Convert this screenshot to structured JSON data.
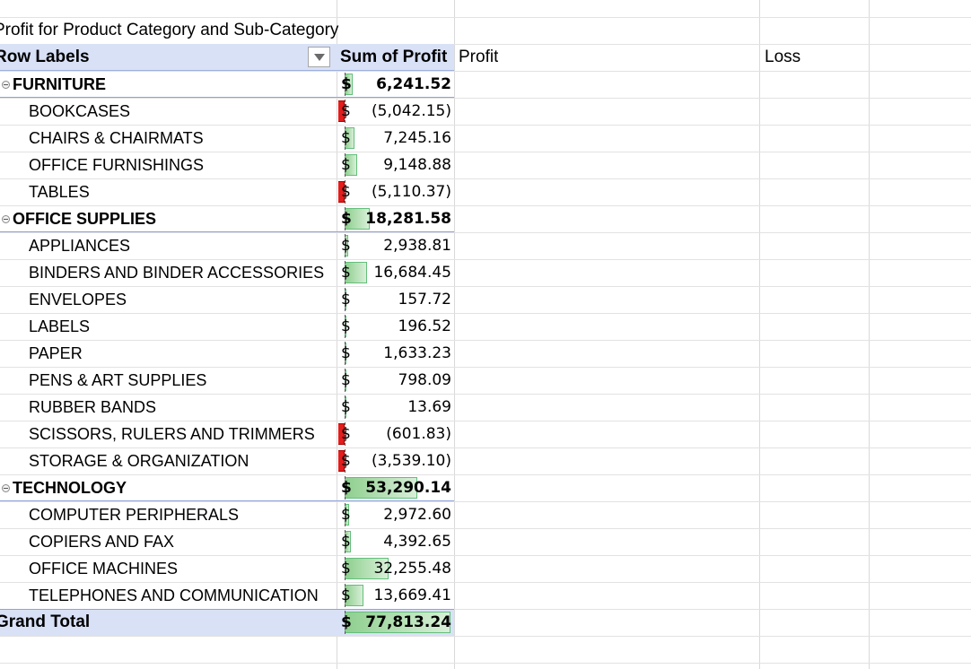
{
  "pivot": {
    "title": "Profit for Product Category and Sub-Category",
    "row_labels_header": "Row Labels",
    "value_header": "Sum of Profit",
    "extra_headers": {
      "profit": "Profit",
      "loss": "Loss"
    },
    "grand_total": {
      "label": "Grand Total",
      "currency": "$",
      "amount": "77,813.24",
      "value": 77813.24
    },
    "categories": [
      {
        "label": "FURNITURE",
        "currency": "$",
        "amount": "6,241.52",
        "value": 6241.52,
        "items": [
          {
            "label": "BOOKCASES",
            "currency": "$",
            "amount": "(5,042.15)",
            "value": -5042.15
          },
          {
            "label": "CHAIRS & CHAIRMATS",
            "currency": "$",
            "amount": "7,245.16",
            "value": 7245.16
          },
          {
            "label": "OFFICE FURNISHINGS",
            "currency": "$",
            "amount": "9,148.88",
            "value": 9148.88
          },
          {
            "label": "TABLES",
            "currency": "$",
            "amount": "(5,110.37)",
            "value": -5110.37
          }
        ]
      },
      {
        "label": "OFFICE SUPPLIES",
        "currency": "$",
        "amount": "18,281.58",
        "value": 18281.58,
        "items": [
          {
            "label": "APPLIANCES",
            "currency": "$",
            "amount": "2,938.81",
            "value": 2938.81
          },
          {
            "label": "BINDERS AND BINDER ACCESSORIES",
            "currency": "$",
            "amount": "16,684.45",
            "value": 16684.45
          },
          {
            "label": "ENVELOPES",
            "currency": "$",
            "amount": "157.72",
            "value": 157.72
          },
          {
            "label": "LABELS",
            "currency": "$",
            "amount": "196.52",
            "value": 196.52
          },
          {
            "label": "PAPER",
            "currency": "$",
            "amount": "1,633.23",
            "value": 1633.23
          },
          {
            "label": "PENS & ART SUPPLIES",
            "currency": "$",
            "amount": "798.09",
            "value": 798.09
          },
          {
            "label": "RUBBER BANDS",
            "currency": "$",
            "amount": "13.69",
            "value": 13.69
          },
          {
            "label": "SCISSORS, RULERS AND TRIMMERS",
            "currency": "$",
            "amount": "(601.83)",
            "value": -601.83
          },
          {
            "label": "STORAGE & ORGANIZATION",
            "currency": "$",
            "amount": "(3,539.10)",
            "value": -3539.1
          }
        ]
      },
      {
        "label": "TECHNOLOGY",
        "currency": "$",
        "amount": "53,290.14",
        "value": 53290.14,
        "items": [
          {
            "label": "COMPUTER PERIPHERALS",
            "currency": "$",
            "amount": "2,972.60",
            "value": 2972.6
          },
          {
            "label": "COPIERS AND FAX",
            "currency": "$",
            "amount": "4,392.65",
            "value": 4392.65
          },
          {
            "label": "OFFICE MACHINES",
            "currency": "$",
            "amount": "32,255.48",
            "value": 32255.48
          },
          {
            "label": "TELEPHONES AND COMMUNICATION",
            "currency": "$",
            "amount": "13,669.41",
            "value": 13669.41
          }
        ]
      }
    ]
  },
  "colors": {
    "header_fill": "#d9e1f7",
    "positive_bar": "#63be7b",
    "negative_bar": "#e31c1c",
    "gridline": "#d9d9d9"
  },
  "icons": {
    "filter": "dropdown-arrow-icon",
    "collapse": "collapse-minus-icon"
  }
}
